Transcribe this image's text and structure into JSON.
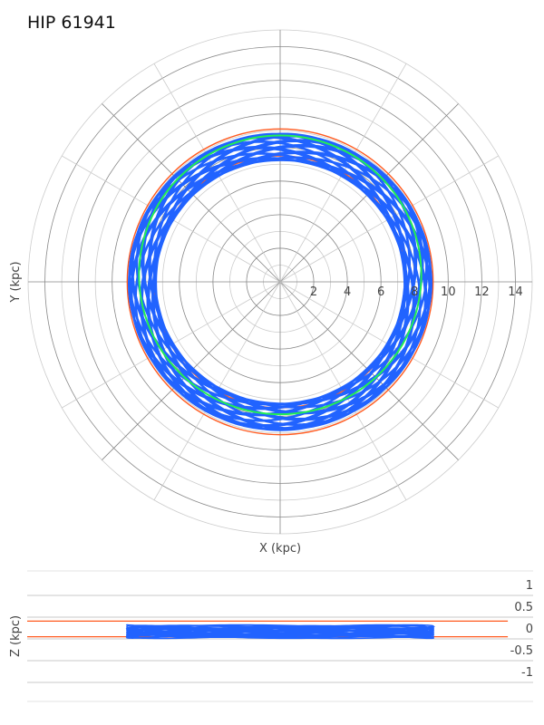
{
  "title": "HIP 61941",
  "colors": {
    "orbit": "#2163ff",
    "bounds": "#ff5a1f",
    "mean_orbit": "#22ee55",
    "grid_major": "#888888",
    "grid_minor": "#cccccc"
  },
  "chart_data": [
    {
      "type": "line",
      "subtype": "polar",
      "xlabel": "X (kpc)",
      "ylabel": "Y (kpc)",
      "r_max": 15,
      "r_ticks": [
        2,
        4,
        6,
        8,
        10,
        12,
        14
      ],
      "r_tick_labels": [
        "2",
        "4",
        "6",
        "8",
        "10",
        "12",
        "14"
      ],
      "radial_lines_deg": [
        0,
        30,
        45,
        60,
        90,
        120,
        135,
        150,
        180,
        210,
        225,
        240,
        270,
        300,
        315,
        330
      ],
      "grid": true,
      "series": [
        {
          "color": "orbit",
          "r_min": 7.4,
          "r_max": 9.0,
          "epicycles": 28,
          "loops": 22
        },
        {
          "color": "bounds",
          "circles": [
            7.5,
            9.1
          ]
        },
        {
          "color": "mean_orbit",
          "ellipse": {
            "rx": 8.4,
            "ry": 8.3,
            "center": [
              0,
              0.2
            ]
          }
        }
      ]
    },
    {
      "type": "line",
      "ylabel": "Z (kpc)",
      "xlim": [
        -15,
        15
      ],
      "ylim": [
        -1.25,
        1.25
      ],
      "y_ticks": [
        1,
        0.5,
        0,
        -0.5,
        -1
      ],
      "y_tick_labels": [
        "1",
        "0.5",
        "0",
        "-0.5",
        "-1"
      ],
      "grid": true,
      "series": [
        {
          "color": "bounds",
          "hlines": [
            0.18,
            -0.18
          ],
          "x_range": [
            -15,
            13.5
          ]
        },
        {
          "color": "orbit",
          "x_range": [
            -9.1,
            9.1
          ],
          "z_amplitude": 0.16,
          "loops": 22
        }
      ]
    }
  ]
}
